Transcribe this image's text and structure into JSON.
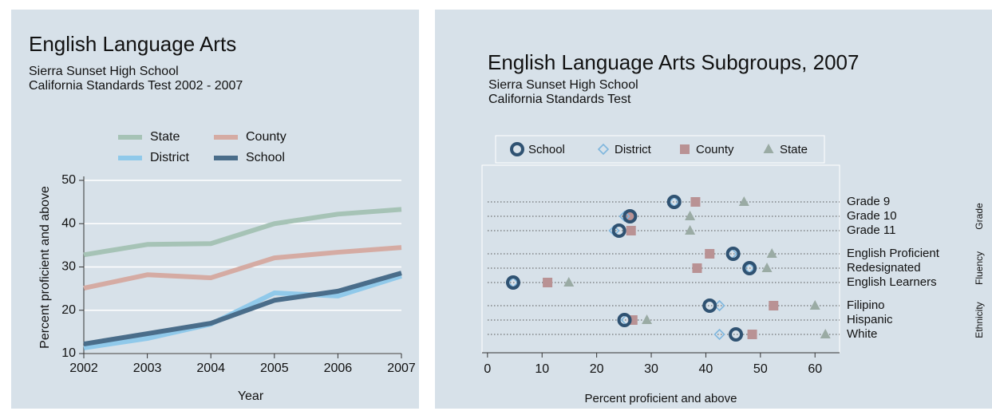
{
  "chart_data": [
    {
      "type": "line",
      "title": "English Language Arts",
      "subtitle": [
        "Sierra Sunset High School",
        "California Standards Test 2002 - 2007"
      ],
      "x": [
        2002,
        2003,
        2004,
        2005,
        2006,
        2007
      ],
      "xlim": [
        2002,
        2007
      ],
      "xticks": [
        2002,
        2003,
        2004,
        2005,
        2006,
        2007
      ],
      "ylim": [
        10,
        50
      ],
      "yticks": [
        10,
        20,
        30,
        40,
        50
      ],
      "grid": true,
      "xlabel": "Year",
      "ylabel": "Percent proficient and above",
      "series": [
        {
          "name": "State",
          "color": "#a6c3b6",
          "values": [
            32.8,
            35.2,
            35.4,
            40,
            42.2,
            43.3
          ]
        },
        {
          "name": "County",
          "color": "#d5aba3",
          "values": [
            25.1,
            28.2,
            27.5,
            32.1,
            33.4,
            34.5
          ]
        },
        {
          "name": "District",
          "color": "#90c9ea",
          "values": [
            11.3,
            13.5,
            16.8,
            24,
            23.3,
            27.9
          ]
        },
        {
          "name": "School",
          "color": "#4a6d8a",
          "values": [
            12.2,
            14.6,
            17,
            22.3,
            24.4,
            28.6
          ]
        }
      ]
    },
    {
      "type": "dot",
      "title": "English Language Arts Subgroups, 2007",
      "subtitle": [
        "Sierra Sunset High School",
        "California Standards Test"
      ],
      "xlim": [
        -1,
        64.5
      ],
      "xticks": [
        0,
        10,
        20,
        30,
        40,
        50,
        60
      ],
      "xlabel": "Percent proficient and above",
      "groups": [
        {
          "name": "Grade",
          "categories": [
            "Grade 9",
            "Grade 10",
            "Grade 11"
          ]
        },
        {
          "name": "Fluency",
          "categories": [
            "English Proficient",
            "Redesignated",
            "English Learners"
          ]
        },
        {
          "name": "Ethnicity",
          "categories": [
            "Filipino",
            "Hispanic",
            "White"
          ]
        }
      ],
      "series": [
        {
          "name": "School",
          "color": "#2f5272",
          "values": [
            [
              34.2,
              26.1,
              24.1
            ],
            [
              45,
              48,
              4.7
            ],
            [
              40.7,
              25.1,
              45.5
            ]
          ]
        },
        {
          "name": "District",
          "color": "#7fb6dd",
          "values": [
            [
              34.2,
              25.1,
              23.2
            ],
            [
              44.8,
              48,
              4.7
            ],
            [
              42.5,
              25.4,
              42.5
            ]
          ]
        },
        {
          "name": "County",
          "color": "#b99294",
          "values": [
            [
              38.1,
              26.1,
              26.3
            ],
            [
              40.7,
              38.4,
              11
            ],
            [
              52.4,
              26.6,
              48.5
            ]
          ]
        },
        {
          "name": "State",
          "color": "#9aaba4",
          "values": [
            [
              47,
              37.1,
              37.1
            ],
            [
              52.1,
              51.2,
              14.9
            ],
            [
              60,
              29.2,
              61.9
            ]
          ]
        }
      ]
    }
  ]
}
